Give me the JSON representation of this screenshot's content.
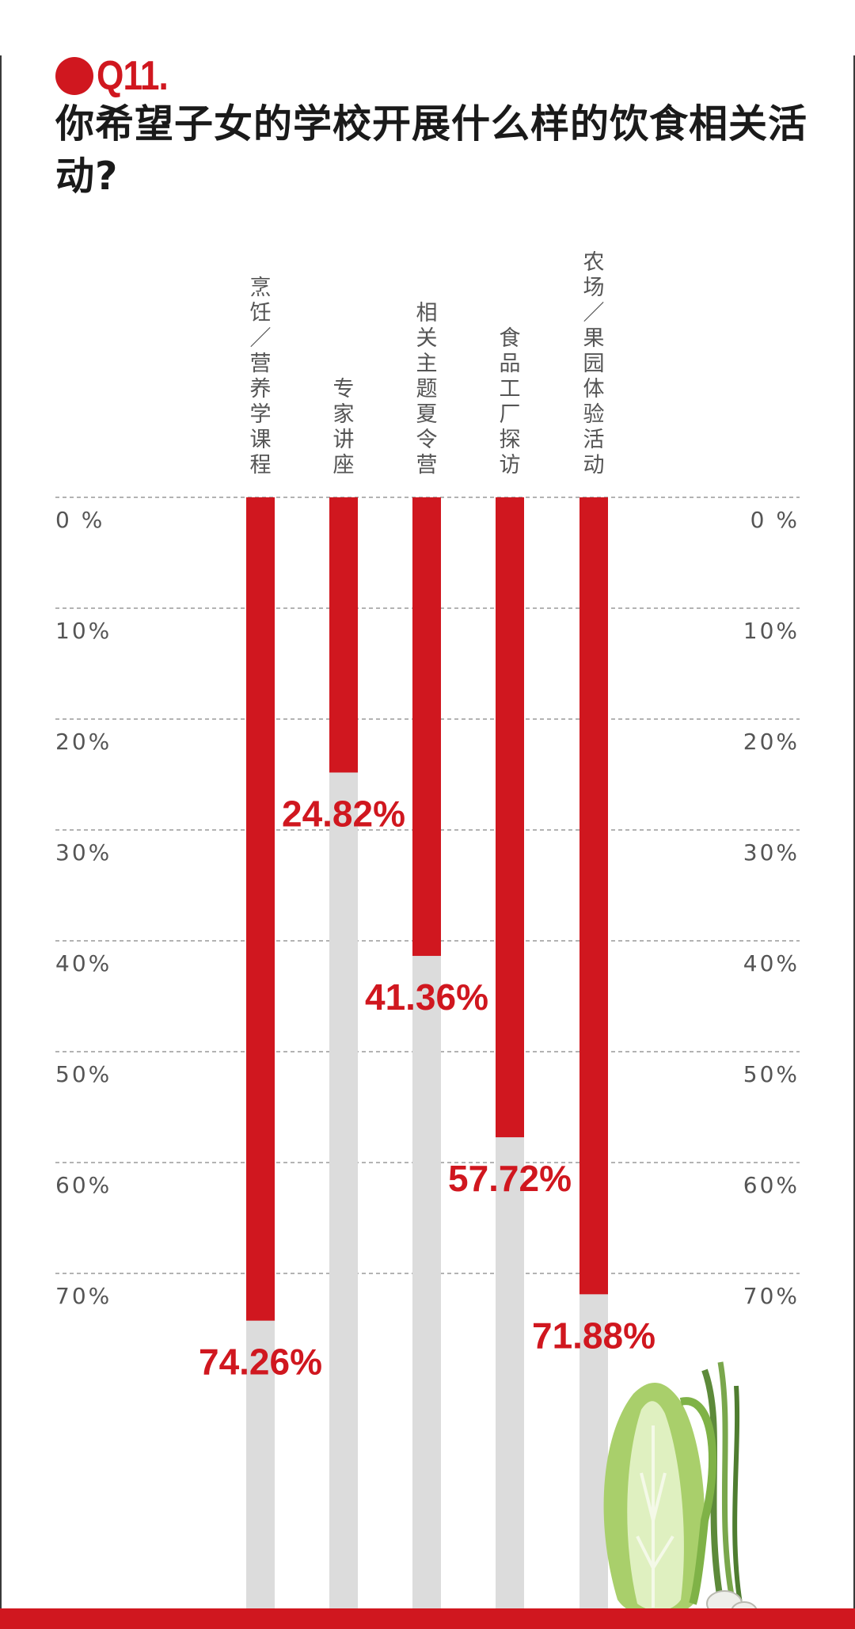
{
  "header": {
    "question_number": "Q11.",
    "title": "你希望子女的学校开展什么样的饮食相关活动?"
  },
  "colors": {
    "accent": "#d0171f",
    "bar_track": "#dcdcdc",
    "grid": "#9a9a9a",
    "label": "#555555"
  },
  "decoration": {
    "illustration": "napa-cabbage-and-spring-onion-icon"
  },
  "chart_data": {
    "type": "bar",
    "orientation": "vertical-downward",
    "categories": [
      "烹饪/营养学课程",
      "专家讲座",
      "相关主题夏令营",
      "食品工厂探访",
      "农场/果园体验活动"
    ],
    "values": [
      74.26,
      24.82,
      41.36,
      57.72,
      71.88
    ],
    "value_labels": [
      "74.26%",
      "24.82%",
      "41.36%",
      "57.72%",
      "71.88%"
    ],
    "y_ticks": [
      "0 %",
      "10%",
      "20%",
      "30%",
      "40%",
      "50%",
      "60%",
      "70%"
    ],
    "ylim": [
      0,
      100
    ],
    "grid": true,
    "legend": "none"
  }
}
